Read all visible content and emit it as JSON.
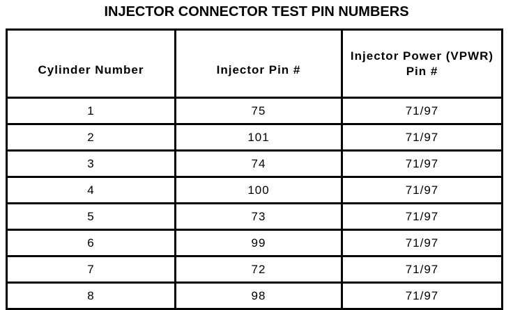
{
  "title": "INJECTOR CONNECTOR TEST PIN NUMBERS",
  "headers": [
    "Cylinder Number",
    "Injector Pin #",
    "Injector Power (VPWR) Pin #"
  ],
  "rows": [
    [
      "1",
      "75",
      "71/97"
    ],
    [
      "2",
      "101",
      "71/97"
    ],
    [
      "3",
      "74",
      "71/97"
    ],
    [
      "4",
      "100",
      "71/97"
    ],
    [
      "5",
      "73",
      "71/97"
    ],
    [
      "6",
      "99",
      "71/97"
    ],
    [
      "7",
      "72",
      "71/97"
    ],
    [
      "8",
      "98",
      "71/97"
    ]
  ]
}
